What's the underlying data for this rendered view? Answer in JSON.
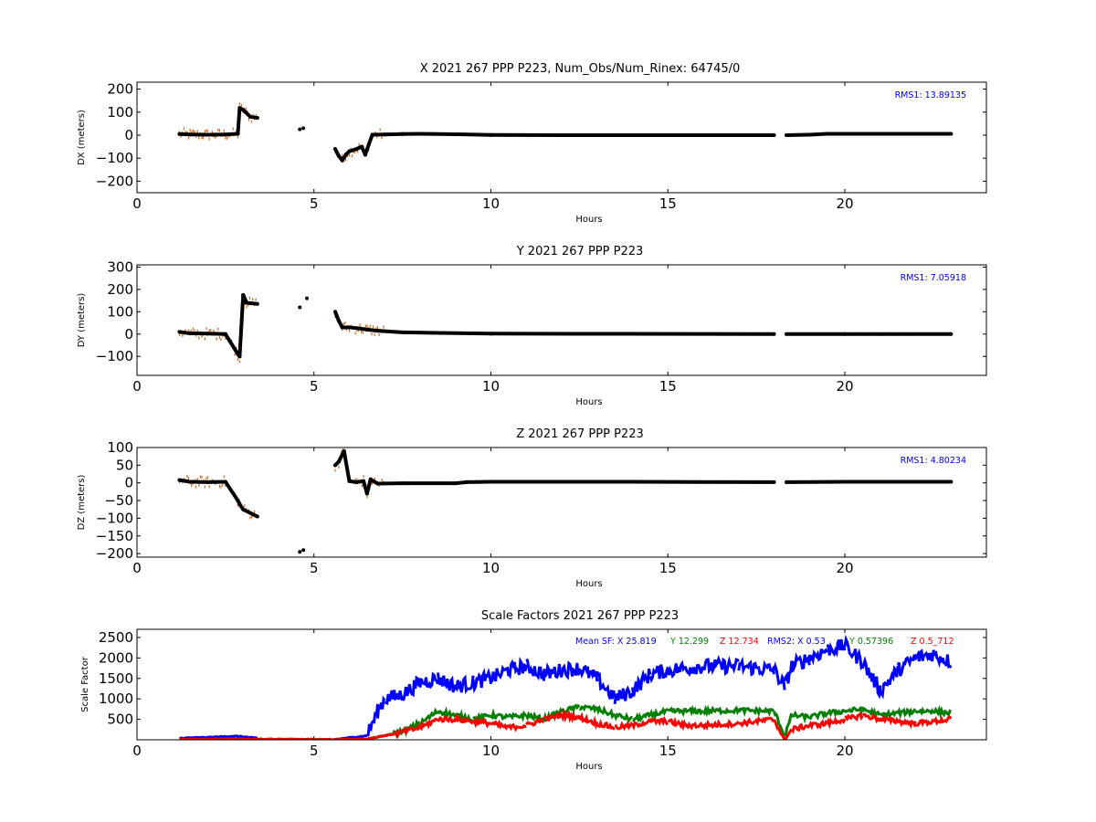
{
  "chart_data": [
    {
      "type": "scatter",
      "title": "X 2021 267 PPP  P223, Num_Obs/Num_Rinex: 64745/0",
      "xlabel": "Hours",
      "ylabel": "DX (meters)",
      "xlim": [
        0,
        24
      ],
      "ylim": [
        -250,
        230
      ],
      "xticks": [
        "0",
        "5",
        "10",
        "15",
        "20"
      ],
      "yticks": [
        "200",
        "100",
        "0",
        "−100",
        "−200"
      ],
      "ytick_values": [
        200,
        100,
        0,
        -100,
        -200
      ],
      "annotation": "RMS1: 13.89135",
      "colors": {
        "main": "#000000",
        "scatter": "#d2691e",
        "annotation": "#0000ff"
      },
      "series": [
        {
          "values": [
            [
              1.2,
              5
            ],
            [
              1.5,
              3
            ],
            [
              2.0,
              2
            ],
            [
              2.5,
              3
            ],
            [
              2.85,
              6
            ],
            [
              2.9,
              118
            ],
            [
              3.0,
              110
            ],
            [
              3.2,
              80
            ],
            [
              3.4,
              75
            ],
            [
              4.6,
              25
            ],
            [
              4.7,
              30
            ],
            [
              5.6,
              -60
            ],
            [
              5.7,
              -90
            ],
            [
              5.8,
              -110
            ],
            [
              5.9,
              -85
            ],
            [
              6.0,
              -70
            ],
            [
              6.2,
              -60
            ],
            [
              6.35,
              -50
            ],
            [
              6.45,
              -85
            ],
            [
              6.55,
              -40
            ],
            [
              6.65,
              2
            ],
            [
              7.0,
              3
            ],
            [
              7.5,
              5
            ],
            [
              8.0,
              6
            ],
            [
              9.0,
              4
            ],
            [
              10.0,
              1
            ],
            [
              12.0,
              0
            ],
            [
              14.0,
              0
            ],
            [
              16.0,
              0
            ],
            [
              18.0,
              0
            ],
            [
              18.35,
              0
            ],
            [
              19.0,
              2
            ],
            [
              19.5,
              6
            ],
            [
              20.0,
              6
            ],
            [
              21.0,
              6
            ],
            [
              22.0,
              6
            ],
            [
              23.0,
              6
            ]
          ]
        }
      ]
    },
    {
      "type": "scatter",
      "title": "Y 2021 267 PPP  P223",
      "xlabel": "Hours",
      "ylabel": "DY (meters)",
      "xlim": [
        0,
        24
      ],
      "ylim": [
        -185,
        310
      ],
      "xticks": [
        "0",
        "5",
        "10",
        "15",
        "20"
      ],
      "yticks": [
        "300",
        "200",
        "100",
        "0",
        "−100"
      ],
      "ytick_values": [
        300,
        200,
        100,
        0,
        -100
      ],
      "annotation": "RMS1:  7.05918",
      "colors": {
        "main": "#000000",
        "scatter": "#d2691e",
        "annotation": "#0000ff"
      },
      "series": [
        {
          "values": [
            [
              1.2,
              10
            ],
            [
              1.5,
              3
            ],
            [
              2.0,
              2
            ],
            [
              2.5,
              0
            ],
            [
              2.85,
              -90
            ],
            [
              2.9,
              -100
            ],
            [
              3.0,
              175
            ],
            [
              3.1,
              140
            ],
            [
              3.4,
              135
            ],
            [
              4.6,
              120
            ],
            [
              4.8,
              160
            ],
            [
              5.6,
              100
            ],
            [
              5.7,
              60
            ],
            [
              5.8,
              30
            ],
            [
              6.0,
              30
            ],
            [
              6.3,
              25
            ],
            [
              6.5,
              20
            ],
            [
              6.8,
              15
            ],
            [
              7.5,
              8
            ],
            [
              8.5,
              5
            ],
            [
              10.0,
              2
            ],
            [
              14.0,
              1
            ],
            [
              18.0,
              0
            ],
            [
              18.35,
              0
            ],
            [
              20.0,
              0
            ],
            [
              23.0,
              0
            ]
          ]
        }
      ]
    },
    {
      "type": "scatter",
      "title": "Z 2021 267 PPP  P223",
      "xlabel": "Hours",
      "ylabel": "DZ (meters)",
      "xlim": [
        0,
        24
      ],
      "ylim": [
        -210,
        100
      ],
      "xticks": [
        "0",
        "5",
        "10",
        "15",
        "20"
      ],
      "yticks": [
        "100",
        "50",
        "0",
        "−50",
        "−100",
        "−150",
        "−200"
      ],
      "ytick_values": [
        100,
        50,
        0,
        -50,
        -100,
        -150,
        -200
      ],
      "annotation": "RMS1:  4.80234",
      "colors": {
        "main": "#000000",
        "scatter": "#d2691e",
        "annotation": "#0000ff"
      },
      "series": [
        {
          "values": [
            [
              1.2,
              8
            ],
            [
              1.5,
              3
            ],
            [
              2.0,
              2
            ],
            [
              2.5,
              3
            ],
            [
              2.85,
              -50
            ],
            [
              2.9,
              -60
            ],
            [
              3.0,
              -75
            ],
            [
              3.2,
              -85
            ],
            [
              3.4,
              -95
            ],
            [
              4.6,
              -195
            ],
            [
              4.7,
              -190
            ],
            [
              5.6,
              50
            ],
            [
              5.7,
              60
            ],
            [
              5.85,
              90
            ],
            [
              6.0,
              5
            ],
            [
              6.2,
              2
            ],
            [
              6.4,
              5
            ],
            [
              6.5,
              -30
            ],
            [
              6.6,
              10
            ],
            [
              6.8,
              -2
            ],
            [
              7.5,
              -1
            ],
            [
              9.0,
              -1
            ],
            [
              9.3,
              2
            ],
            [
              10.0,
              3
            ],
            [
              14.0,
              3
            ],
            [
              18.0,
              2
            ],
            [
              18.35,
              2
            ],
            [
              20.0,
              3
            ],
            [
              23.0,
              3
            ]
          ]
        }
      ]
    },
    {
      "type": "line",
      "title": "Scale Factors 2021 267 PPP  P223",
      "xlabel": "Hours",
      "ylabel": "Scale Factor",
      "xlim": [
        0,
        24
      ],
      "ylim": [
        0,
        2700
      ],
      "xticks": [
        "0",
        "5",
        "10",
        "15",
        "20"
      ],
      "yticks": [
        "2500",
        "2000",
        "1500",
        "1000",
        "500"
      ],
      "ytick_values": [
        2500,
        2000,
        1500,
        1000,
        500
      ],
      "annotation": {
        "mean_x": "Mean SF: X  25.819",
        "mean_y": "Y  12.299",
        "mean_z": "Z  12.734",
        "rms2_x": "RMS2: X  0.53",
        "rms2_y": "Y  0.57396",
        "rms2_z": "Z  0.5_712"
      },
      "colors": {
        "X": "#0000ff",
        "Y": "#008000",
        "Z": "#ff0000"
      },
      "series": [
        {
          "name": "X",
          "values": [
            [
              1.2,
              40
            ],
            [
              2.0,
              60
            ],
            [
              2.8,
              90
            ],
            [
              3.4,
              40
            ],
            [
              5.6,
              10
            ],
            [
              6.5,
              100
            ],
            [
              6.8,
              700
            ],
            [
              7.0,
              1000
            ],
            [
              7.5,
              1100
            ],
            [
              8.0,
              1400
            ],
            [
              8.5,
              1500
            ],
            [
              9.0,
              1300
            ],
            [
              9.5,
              1400
            ],
            [
              10.0,
              1500
            ],
            [
              10.5,
              1700
            ],
            [
              11.0,
              1800
            ],
            [
              11.5,
              1600
            ],
            [
              12.0,
              1700
            ],
            [
              12.5,
              1750
            ],
            [
              13.0,
              1500
            ],
            [
              13.5,
              1000
            ],
            [
              14.0,
              1200
            ],
            [
              14.5,
              1600
            ],
            [
              15.0,
              1700
            ],
            [
              16.0,
              1800
            ],
            [
              17.0,
              1800
            ],
            [
              18.0,
              1700
            ],
            [
              18.3,
              1300
            ],
            [
              18.5,
              1800
            ],
            [
              19.0,
              2000
            ],
            [
              19.5,
              2200
            ],
            [
              20.0,
              2300
            ],
            [
              20.5,
              1900
            ],
            [
              21.0,
              1200
            ],
            [
              21.5,
              1700
            ],
            [
              22.0,
              2000
            ],
            [
              22.5,
              2100
            ],
            [
              23.0,
              1900
            ]
          ]
        },
        {
          "name": "Y",
          "values": [
            [
              1.2,
              10
            ],
            [
              2.0,
              15
            ],
            [
              2.8,
              20
            ],
            [
              5.6,
              5
            ],
            [
              6.5,
              20
            ],
            [
              7.0,
              100
            ],
            [
              7.5,
              200
            ],
            [
              8.0,
              400
            ],
            [
              8.5,
              700
            ],
            [
              9.0,
              600
            ],
            [
              9.5,
              500
            ],
            [
              10.0,
              600
            ],
            [
              10.5,
              550
            ],
            [
              11.0,
              600
            ],
            [
              11.5,
              500
            ],
            [
              12.0,
              700
            ],
            [
              12.5,
              800
            ],
            [
              13.0,
              750
            ],
            [
              13.5,
              600
            ],
            [
              14.0,
              500
            ],
            [
              14.5,
              600
            ],
            [
              15.0,
              700
            ],
            [
              16.0,
              700
            ],
            [
              17.0,
              720
            ],
            [
              18.0,
              700
            ],
            [
              18.3,
              100
            ],
            [
              18.5,
              600
            ],
            [
              19.0,
              550
            ],
            [
              19.5,
              650
            ],
            [
              20.0,
              700
            ],
            [
              20.5,
              750
            ],
            [
              21.0,
              600
            ],
            [
              21.5,
              650
            ],
            [
              22.0,
              700
            ],
            [
              22.5,
              700
            ],
            [
              23.0,
              650
            ]
          ]
        },
        {
          "name": "Z",
          "values": [
            [
              1.2,
              5
            ],
            [
              2.0,
              10
            ],
            [
              5.6,
              5
            ],
            [
              6.5,
              20
            ],
            [
              7.0,
              100
            ],
            [
              7.5,
              180
            ],
            [
              8.0,
              300
            ],
            [
              8.5,
              500
            ],
            [
              9.0,
              500
            ],
            [
              9.5,
              450
            ],
            [
              10.0,
              400
            ],
            [
              10.5,
              300
            ],
            [
              11.0,
              350
            ],
            [
              11.5,
              500
            ],
            [
              12.0,
              600
            ],
            [
              12.5,
              550
            ],
            [
              13.0,
              400
            ],
            [
              13.5,
              300
            ],
            [
              14.0,
              350
            ],
            [
              14.5,
              450
            ],
            [
              15.0,
              450
            ],
            [
              15.5,
              350
            ],
            [
              16.0,
              350
            ],
            [
              17.0,
              400
            ],
            [
              18.0,
              500
            ],
            [
              18.3,
              0
            ],
            [
              18.5,
              250
            ],
            [
              19.0,
              350
            ],
            [
              19.5,
              400
            ],
            [
              20.0,
              500
            ],
            [
              20.5,
              600
            ],
            [
              21.0,
              500
            ],
            [
              21.5,
              450
            ],
            [
              22.0,
              400
            ],
            [
              22.5,
              450
            ],
            [
              23.0,
              500
            ]
          ]
        }
      ]
    }
  ]
}
